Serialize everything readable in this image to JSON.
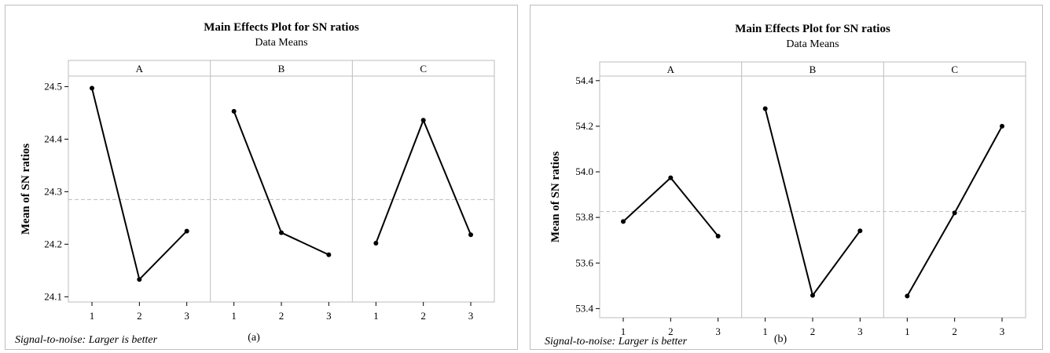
{
  "chart_data": [
    {
      "type": "line",
      "title": "Main Effects Plot for SN ratios",
      "subtitle": "Data Means",
      "ylabel": "Mean of SN ratios",
      "footnote": "Signal-to-noise: Larger is better",
      "caption": "(a)",
      "ylim": [
        24.09,
        24.52
      ],
      "yticks": [
        24.1,
        24.2,
        24.3,
        24.4,
        24.5
      ],
      "ytick_labels": [
        "24.1",
        "24.2",
        "24.3",
        "24.4",
        "24.5"
      ],
      "levels": [
        "1",
        "2",
        "3"
      ],
      "reference_mean": 24.285,
      "factors": [
        {
          "name": "A",
          "values": [
            24.497,
            24.133,
            24.225
          ]
        },
        {
          "name": "B",
          "values": [
            24.453,
            24.222,
            24.18
          ]
        },
        {
          "name": "C",
          "values": [
            24.202,
            24.436,
            24.218
          ]
        }
      ]
    },
    {
      "type": "line",
      "title": "Main Effects Plot for SN ratios",
      "subtitle": "Data Means",
      "ylabel": "Mean of SN ratios",
      "footnote": "Signal-to-noise: Larger is better",
      "caption": "(b)",
      "ylim": [
        53.36,
        54.42
      ],
      "yticks": [
        53.4,
        53.6,
        53.8,
        54.0,
        54.2,
        54.4
      ],
      "ytick_labels": [
        "53.4",
        "53.6",
        "53.8",
        "54.0",
        "54.2",
        "54.4"
      ],
      "levels": [
        "1",
        "2",
        "3"
      ],
      "reference_mean": 53.826,
      "factors": [
        {
          "name": "A",
          "values": [
            53.782,
            53.974,
            53.718
          ]
        },
        {
          "name": "B",
          "values": [
            54.277,
            53.458,
            53.741
          ]
        },
        {
          "name": "C",
          "values": [
            53.455,
            53.82,
            54.2
          ]
        }
      ]
    }
  ],
  "colors": {
    "line": "#000000",
    "frame": "#bdbdbd",
    "mean_line": "#bdbdbd",
    "axis": "#000000"
  }
}
